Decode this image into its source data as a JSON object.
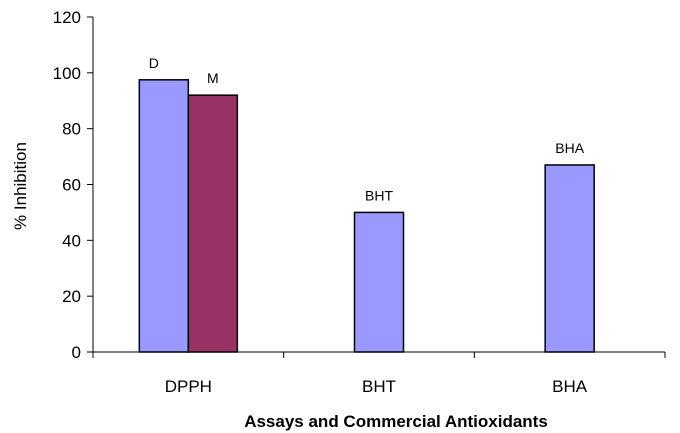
{
  "chart_data": {
    "type": "bar",
    "categories": [
      "DPPH",
      "BHT",
      "BHA"
    ],
    "bars": [
      {
        "category": "DPPH",
        "label": "D",
        "value": 97.5,
        "color": "#9999ff"
      },
      {
        "category": "DPPH",
        "label": "M",
        "value": 92,
        "color": "#993366"
      },
      {
        "category": "BHT",
        "label": "BHT",
        "value": 50,
        "color": "#9999ff"
      },
      {
        "category": "BHA",
        "label": "BHA",
        "value": 67,
        "color": "#9999ff"
      }
    ],
    "xlabel": "Assays and Commercial Antioxidants",
    "ylabel": "% Inhibition",
    "ylim": [
      0,
      120
    ],
    "yticks": [
      0,
      20,
      40,
      60,
      80,
      100,
      120
    ],
    "grid": false,
    "legend": "none"
  }
}
